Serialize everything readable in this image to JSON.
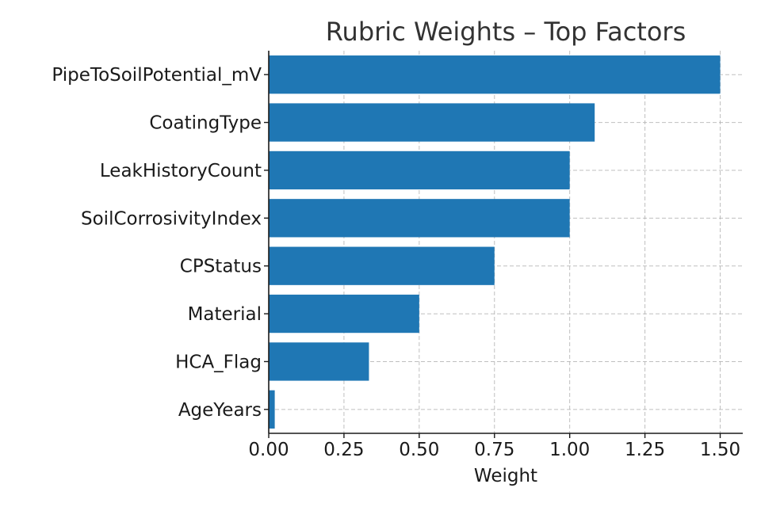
{
  "chart_data": {
    "type": "bar",
    "orientation": "horizontal",
    "title": "Rubric Weights – Top Factors",
    "xlabel": "Weight",
    "ylabel": "",
    "categories": [
      "PipeToSoilPotential_mV",
      "CoatingType",
      "LeakHistoryCount",
      "SoilCorrosivityIndex",
      "CPStatus",
      "Material",
      "HCA_Flag",
      "AgeYears"
    ],
    "values": [
      1.5,
      1.083,
      1.0,
      1.0,
      0.75,
      0.5,
      0.333,
      0.02
    ],
    "xlim": [
      0,
      1.575
    ],
    "xticks": [
      0.0,
      0.25,
      0.5,
      0.75,
      1.0,
      1.25,
      1.5
    ],
    "xtick_labels": [
      "0.00",
      "0.25",
      "0.50",
      "0.75",
      "1.00",
      "1.25",
      "1.50"
    ],
    "grid": true,
    "bar_color": "#1f77b4"
  }
}
